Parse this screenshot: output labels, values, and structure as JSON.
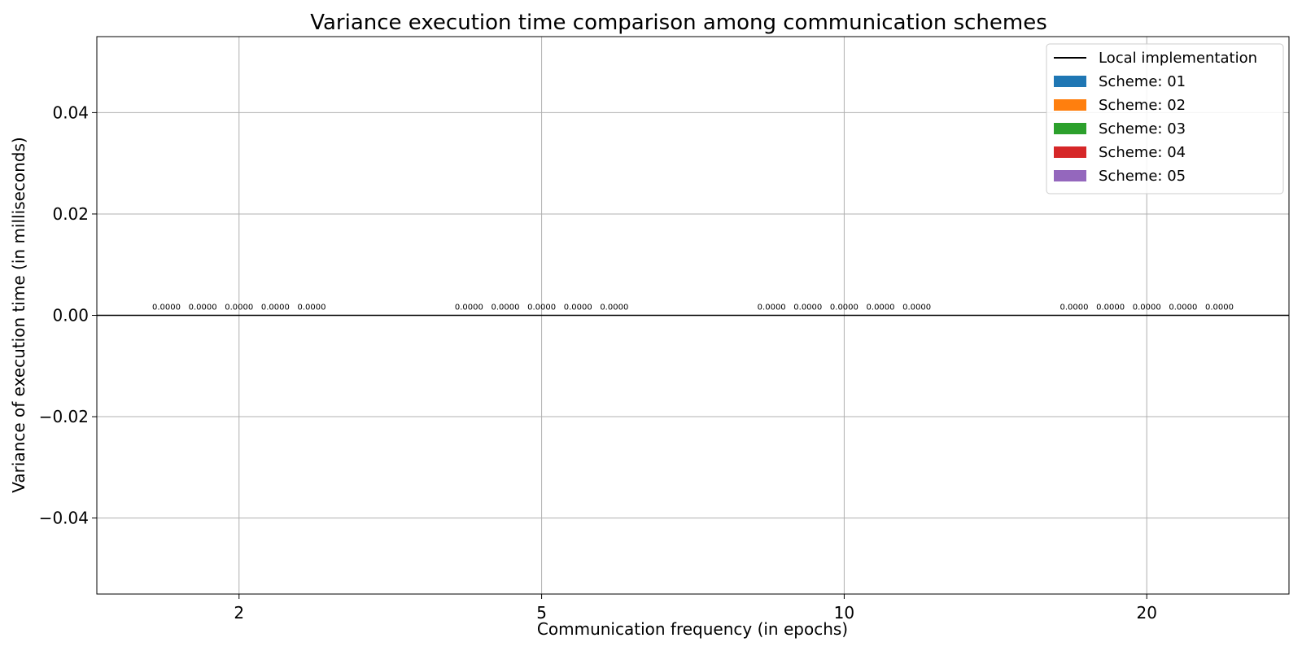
{
  "chart_data": {
    "type": "bar",
    "title": "Variance execution time comparison among communication schemes",
    "xlabel": "Communication frequency (in epochs)",
    "ylabel": "Variance of execution time (in milliseconds)",
    "categories": [
      "2",
      "5",
      "10",
      "20"
    ],
    "ylim": [
      -0.055,
      0.055
    ],
    "yticks": [
      -0.04,
      -0.02,
      0.0,
      0.02,
      0.04
    ],
    "ytick_labels": [
      "−0.04",
      "−0.02",
      "0.00",
      "0.02",
      "0.04"
    ],
    "grid": true,
    "legend_position": "top-right",
    "reference_line": {
      "name": "Local implementation",
      "value": 0.0,
      "color": "#000000"
    },
    "series": [
      {
        "name": "Scheme: 01",
        "color": "#1f77b4",
        "values": [
          0,
          0,
          0,
          0
        ],
        "labels": [
          "0.0000",
          "0.0000",
          "0.0000",
          "0.0000"
        ]
      },
      {
        "name": "Scheme: 02",
        "color": "#ff7f0e",
        "values": [
          0,
          0,
          0,
          0
        ],
        "labels": [
          "0.0000",
          "0.0000",
          "0.0000",
          "0.0000"
        ]
      },
      {
        "name": "Scheme: 03",
        "color": "#2ca02c",
        "values": [
          0,
          0,
          0,
          0
        ],
        "labels": [
          "0.0000",
          "0.0000",
          "0.0000",
          "0.0000"
        ]
      },
      {
        "name": "Scheme: 04",
        "color": "#d62728",
        "values": [
          0,
          0,
          0,
          0
        ],
        "labels": [
          "0.0000",
          "0.0000",
          "0.0000",
          "0.0000"
        ]
      },
      {
        "name": "Scheme: 05",
        "color": "#9467bd",
        "values": [
          0,
          0,
          0,
          0
        ],
        "labels": [
          "0.0000",
          "0.0000",
          "0.0000",
          "0.0000"
        ]
      }
    ]
  }
}
